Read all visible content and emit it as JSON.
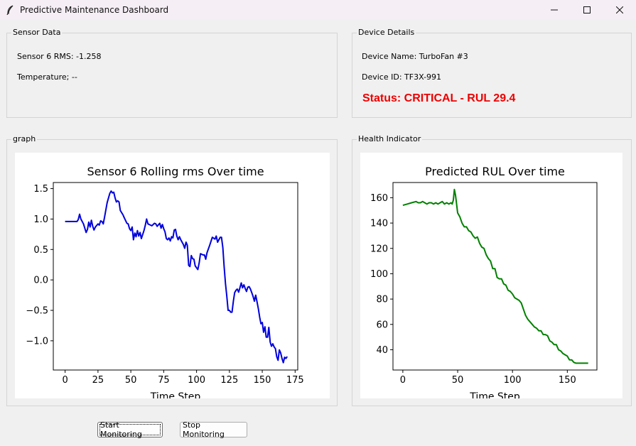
{
  "window": {
    "title": "Predictive Maintenance Dashboard",
    "icon": "feather-icon",
    "controls": [
      "minimize-icon",
      "maximize-icon",
      "close-icon"
    ]
  },
  "sensor_frame": {
    "label": "Sensor Data",
    "rms_text": "Sensor 6 RMS: -1.258",
    "temperature_text": "Temperature; --"
  },
  "device_frame": {
    "label": "Device Details",
    "name_text": "Device Name: TurboFan #3",
    "id_text": "Device ID: TF3X-991",
    "status_text": "Status: CRITICAL - RUL 29.4",
    "status_color": "#ee0000"
  },
  "graph_frame": {
    "label": "graph"
  },
  "health_frame": {
    "label": "Health Indicator"
  },
  "buttons": {
    "start_label": "Start Monitoring",
    "stop_label": "Stop Monitoring"
  },
  "chart_data": [
    {
      "type": "line",
      "title": "Sensor 6 Rolling rms Over time",
      "xlabel": "Time Step",
      "ylabel": "",
      "xlim": [
        -9,
        177
      ],
      "ylim": [
        -1.48,
        1.6
      ],
      "xticks": [
        0,
        25,
        50,
        75,
        100,
        125,
        150,
        175
      ],
      "yticks": [
        -1.0,
        -0.5,
        0.0,
        0.5,
        1.0,
        1.5
      ],
      "ytick_labels": [
        "−1.0",
        "−0.5",
        "0.0",
        "0.5",
        "1.0",
        "1.5"
      ],
      "grid": false,
      "series": [
        {
          "color": "#0000dd",
          "x": [
            0,
            3,
            6,
            9,
            10,
            11,
            12,
            14,
            16,
            17,
            18,
            19,
            20,
            21,
            22,
            23,
            25,
            26,
            27,
            28,
            29,
            30,
            32,
            34,
            35,
            36,
            37,
            38,
            39,
            40,
            41,
            42,
            44,
            45,
            47,
            48,
            49,
            50,
            51,
            52,
            53,
            54,
            55,
            56,
            57,
            58,
            60,
            61,
            62,
            63,
            64,
            66,
            68,
            69,
            70,
            72,
            73,
            74,
            75,
            76,
            77,
            78,
            79,
            80,
            81,
            82,
            83,
            84,
            85,
            86,
            87,
            88,
            90,
            91,
            92,
            93,
            94,
            95,
            96,
            97,
            98,
            99,
            100,
            101,
            102,
            103,
            104,
            105,
            106,
            107,
            108,
            110,
            112,
            114,
            115,
            116,
            118,
            119,
            120,
            121,
            122,
            123,
            124,
            125,
            126,
            127,
            128,
            129,
            130,
            131,
            132,
            133,
            134,
            135,
            136,
            137,
            138,
            139,
            140,
            141,
            142,
            143,
            144,
            145,
            146,
            147,
            148,
            149,
            150,
            151,
            152,
            153,
            154,
            155,
            156,
            157,
            158,
            159,
            160,
            161,
            162,
            163,
            164,
            165,
            166,
            167,
            168,
            169
          ],
          "y": [
            0.96,
            0.96,
            0.96,
            0.96,
            0.99,
            1.08,
            1.0,
            0.92,
            0.78,
            0.83,
            0.95,
            0.87,
            0.98,
            0.88,
            0.82,
            0.87,
            0.92,
            0.9,
            0.97,
            0.96,
            0.92,
            1.03,
            1.27,
            1.42,
            1.46,
            1.43,
            1.44,
            1.35,
            1.28,
            1.3,
            1.28,
            1.14,
            1.07,
            1.02,
            0.93,
            0.92,
            0.84,
            0.81,
            0.87,
            0.66,
            0.77,
            0.71,
            0.81,
            0.72,
            0.78,
            0.68,
            0.81,
            0.9,
            1.0,
            0.92,
            0.91,
            0.89,
            0.93,
            0.92,
            0.88,
            0.93,
            0.85,
            0.91,
            0.84,
            0.79,
            0.68,
            0.66,
            0.69,
            0.64,
            0.71,
            0.69,
            0.82,
            0.83,
            0.72,
            0.66,
            0.71,
            0.66,
            0.58,
            0.52,
            0.62,
            0.57,
            0.24,
            0.22,
            0.4,
            0.35,
            0.34,
            0.23,
            0.2,
            0.17,
            0.28,
            0.43,
            0.42,
            0.41,
            0.41,
            0.34,
            0.45,
            0.57,
            0.7,
            0.67,
            0.72,
            0.62,
            0.7,
            0.7,
            0.53,
            0.22,
            -0.06,
            -0.26,
            -0.5,
            -0.5,
            -0.53,
            -0.53,
            -0.35,
            -0.21,
            -0.17,
            -0.15,
            -0.2,
            -0.13,
            -0.05,
            -0.13,
            -0.08,
            -0.14,
            -0.19,
            -0.12,
            -0.11,
            -0.15,
            -0.21,
            -0.27,
            -0.35,
            -0.25,
            -0.36,
            -0.47,
            -0.61,
            -0.72,
            -0.7,
            -0.86,
            -0.77,
            -0.94,
            -0.94,
            -0.78,
            -1.02,
            -1.09,
            -1.05,
            -1.1,
            -1.13,
            -1.26,
            -1.32,
            -1.15,
            -1.2,
            -1.29,
            -1.36,
            -1.27,
            -1.29,
            -1.26
          ]
        }
      ]
    },
    {
      "type": "line",
      "title": "Predicted RUL Over time",
      "xlabel": "Time Step",
      "ylabel": "",
      "xlim": [
        -9,
        177
      ],
      "ylim": [
        24,
        172
      ],
      "xticks": [
        0,
        50,
        100,
        150
      ],
      "yticks": [
        40,
        60,
        80,
        100,
        120,
        140,
        160
      ],
      "ytick_labels": [
        "40",
        "60",
        "80",
        "100",
        "120",
        "140",
        "160"
      ],
      "grid": false,
      "series": [
        {
          "color": "#008000",
          "x": [
            0,
            4,
            8,
            12,
            14,
            16,
            18,
            20,
            22,
            24,
            26,
            28,
            30,
            32,
            34,
            36,
            38,
            40,
            42,
            44,
            45,
            46,
            47,
            48,
            49,
            50,
            52,
            54,
            56,
            58,
            60,
            62,
            64,
            66,
            68,
            70,
            72,
            74,
            76,
            78,
            80,
            82,
            84,
            86,
            88,
            90,
            92,
            94,
            96,
            98,
            100,
            102,
            104,
            106,
            108,
            110,
            112,
            114,
            116,
            118,
            120,
            122,
            124,
            126,
            128,
            130,
            132,
            134,
            136,
            138,
            140,
            142,
            144,
            146,
            148,
            150,
            152,
            154,
            156,
            158,
            160,
            162,
            164,
            166,
            168,
            169
          ],
          "y": [
            154,
            155,
            156,
            157,
            156,
            156,
            157,
            156,
            155,
            156,
            156,
            155,
            156,
            155,
            156,
            157,
            155,
            156,
            155,
            156,
            155,
            158,
            166.5,
            162,
            155,
            148,
            145,
            140,
            137,
            137,
            134,
            133,
            130,
            128,
            129,
            124,
            121,
            120,
            115,
            112,
            110,
            104,
            104,
            97,
            96,
            96,
            92,
            91,
            87,
            86,
            84,
            81,
            80,
            79,
            77,
            72,
            67,
            64,
            62,
            60,
            58,
            57,
            55,
            55,
            52,
            52,
            51,
            47,
            46,
            44,
            44,
            40,
            39,
            37,
            36,
            35,
            32,
            32,
            30,
            29.4,
            29.4,
            29.4,
            29.4,
            29.4,
            29.4,
            29.4
          ]
        }
      ]
    }
  ]
}
